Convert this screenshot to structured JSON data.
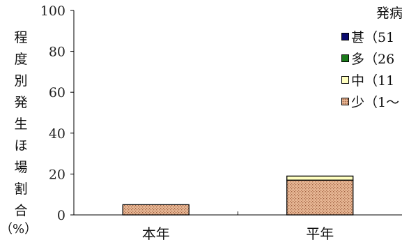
{
  "chart_data": {
    "type": "bar",
    "stacked": true,
    "categories": [
      "本年",
      "平年"
    ],
    "series": [
      {
        "name": "少（1〜",
        "values": [
          5,
          17
        ],
        "color": "#e6b38c"
      },
      {
        "name": "中（11",
        "values": [
          0,
          2
        ],
        "color": "#ffffc0"
      },
      {
        "name": "多（26",
        "values": [
          0,
          0
        ],
        "color": "#1a7a1a"
      },
      {
        "name": "甚（51",
        "values": [
          0,
          0
        ],
        "color": "#0a0a6e"
      }
    ],
    "ylabel_chars": [
      "程",
      "度",
      "別",
      "発",
      "生",
      "ほ",
      "場",
      "割",
      "合"
    ],
    "ylabel_unit": "（%）",
    "ylim": [
      0,
      100
    ],
    "yticks": [
      0,
      20,
      40,
      60,
      80,
      100
    ],
    "legend_title": "発病",
    "legend_placement": "top-right",
    "grid": false
  }
}
